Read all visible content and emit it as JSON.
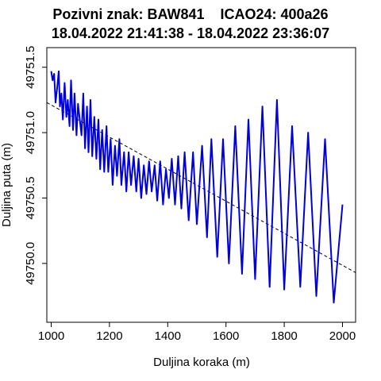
{
  "chart_data": {
    "type": "line",
    "title_line1": "Pozivni znak: BAW841    ICAO24: 400a26",
    "title_line2": "18.04.2022 21:41:38 - 18.04.2022 23:36:07",
    "xlabel": "Duljina koraka (m)",
    "ylabel": "Duljina puta (m)",
    "xlim": [
      985,
      2045
    ],
    "ylim": [
      49749.55,
      49751.65
    ],
    "x_ticks": [
      1000,
      1200,
      1400,
      1600,
      1800,
      2000
    ],
    "y_ticks": [
      49750.0,
      49750.5,
      49751.0,
      49751.5
    ],
    "x_tick_labels": [
      "1000",
      "1200",
      "1400",
      "1600",
      "1800",
      "2000"
    ],
    "y_tick_labels": [
      "49750.0",
      "49750.5",
      "49751.0",
      "49751.5"
    ],
    "series_color": "#0000dd",
    "trend_color": "#000000",
    "trend": {
      "x": [
        985,
        2045
      ],
      "y": [
        49751.23,
        49749.93
      ]
    },
    "series": [
      {
        "x": [
          1000,
          1005,
          1010,
          1015,
          1020,
          1026,
          1030,
          1035,
          1040,
          1046,
          1052,
          1057,
          1063,
          1068,
          1075,
          1080,
          1087,
          1092,
          1098,
          1104,
          1110,
          1116,
          1123,
          1128,
          1135,
          1141,
          1148,
          1155,
          1162,
          1168,
          1175,
          1182,
          1190,
          1196,
          1204,
          1211,
          1219,
          1226,
          1234,
          1241,
          1250,
          1258,
          1266,
          1274,
          1283,
          1292,
          1300,
          1309,
          1318,
          1327,
          1336,
          1345,
          1355,
          1364,
          1374,
          1384,
          1394,
          1404,
          1414,
          1425,
          1436,
          1447,
          1458,
          1472,
          1487,
          1500,
          1518,
          1535,
          1550,
          1570,
          1590,
          1610,
          1632,
          1655,
          1677,
          1700,
          1725,
          1750,
          1775,
          1800,
          1827,
          1855,
          1882,
          1910,
          1940,
          1970,
          2000
        ],
        "y": [
          49751.47,
          49751.4,
          49751.45,
          49751.23,
          49751.33,
          49751.47,
          49751.2,
          49751.3,
          49751.1,
          49751.38,
          49751.12,
          49751.25,
          49751.05,
          49751.4,
          49751.02,
          49751.3,
          49750.98,
          49751.22,
          49751.1,
          49750.98,
          49751.3,
          49750.88,
          49751.2,
          49750.85,
          49751.25,
          49750.82,
          49751.12,
          49750.8,
          49751.1,
          49750.72,
          49751.02,
          49750.7,
          49751.05,
          49750.7,
          49750.95,
          49750.6,
          49750.9,
          49750.67,
          49750.95,
          49750.6,
          49750.85,
          49750.55,
          49750.85,
          49750.6,
          49750.82,
          49750.55,
          49750.8,
          49750.5,
          49750.75,
          49750.53,
          49750.78,
          49750.55,
          49750.75,
          49750.48,
          49750.78,
          49750.45,
          49750.72,
          49750.5,
          49750.8,
          49750.45,
          49750.82,
          49750.42,
          49750.85,
          49750.33,
          49750.85,
          49750.3,
          49750.9,
          49750.2,
          49750.95,
          49750.05,
          49750.95,
          49750.0,
          49751.05,
          49749.92,
          49751.1,
          49749.88,
          49751.2,
          49749.82,
          49751.25,
          49749.8,
          49751.05,
          49749.82,
          49751.0,
          49749.75,
          49750.95,
          49749.7,
          49750.45
        ]
      }
    ]
  }
}
